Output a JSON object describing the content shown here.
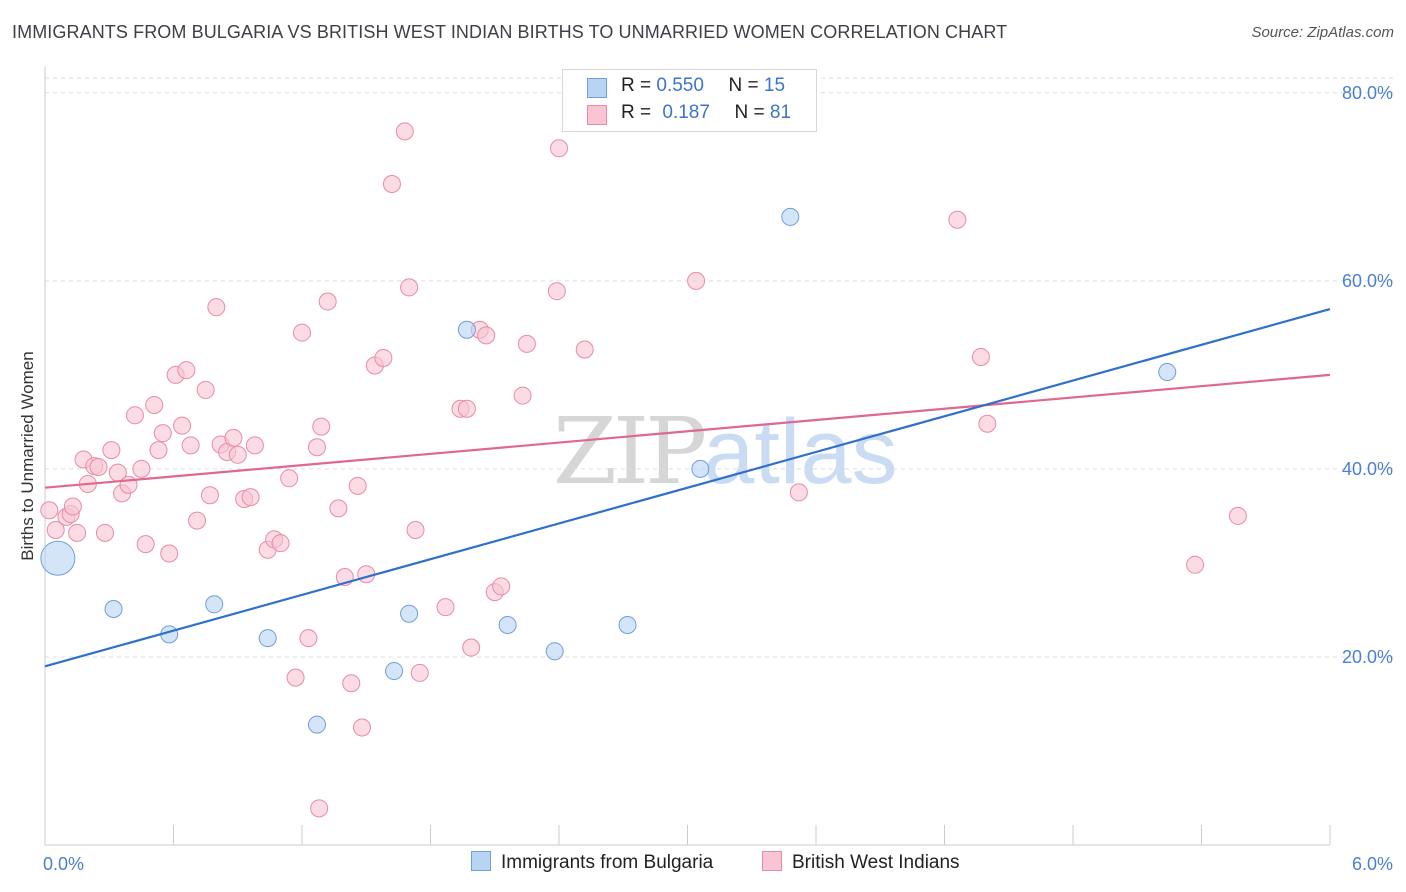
{
  "title": "IMMIGRANTS FROM BULGARIA VS BRITISH WEST INDIAN BIRTHS TO UNMARRIED WOMEN CORRELATION CHART",
  "source": "Source: ZipAtlas.com",
  "watermark": {
    "zip": "ZIP",
    "atlas": "atlas"
  },
  "colors": {
    "bulgaria_fill": "#b9d3f3",
    "bulgaria_stroke": "#6d9fdb",
    "bulgaria_line": "#2f70cc",
    "bwi_fill": "#f9c4d4",
    "bwi_stroke": "#e98aa8",
    "bwi_line": "#e0678f",
    "grid": "#dddddd",
    "tick_label": "#4a7fd1"
  },
  "legend": {
    "rows": [
      {
        "r_label": "R =",
        "r_value": "0.550",
        "n_label": "N =",
        "n_value": "15"
      },
      {
        "r_label": "R =",
        "r_value": "0.187",
        "n_label": "N =",
        "n_value": "81"
      }
    ]
  },
  "chart_data": {
    "type": "scatter",
    "title": "IMMIGRANTS FROM BULGARIA VS BRITISH WEST INDIAN BIRTHS TO UNMARRIED WOMEN CORRELATION CHART",
    "xlabel": "",
    "ylabel": "Births to Unmarried Women",
    "xlim": [
      0,
      6
    ],
    "ylim": [
      0,
      82
    ],
    "x_tick_labels": [
      {
        "value": 0,
        "label": "0.0%"
      },
      {
        "value": 6,
        "label": "6.0%"
      }
    ],
    "y_tick_labels": [
      {
        "value": 20,
        "label": "20.0%"
      },
      {
        "value": 40,
        "label": "40.0%"
      },
      {
        "value": 60,
        "label": "60.0%"
      },
      {
        "value": 80,
        "label": "80.0%"
      }
    ],
    "grid": "horizontal dashed",
    "legend_placement": "top-center",
    "series": [
      {
        "name": "Immigrants from Bulgaria",
        "r": 0.55,
        "n": 15,
        "trend": [
          [
            0,
            19.0
          ],
          [
            6,
            57.0
          ]
        ],
        "points": [
          [
            0.06,
            30.5,
            "large"
          ],
          [
            0.32,
            25.1
          ],
          [
            0.58,
            22.4
          ],
          [
            0.79,
            25.6
          ],
          [
            1.04,
            22.0
          ],
          [
            1.27,
            12.8
          ],
          [
            1.63,
            18.5
          ],
          [
            1.7,
            24.6
          ],
          [
            1.97,
            54.8
          ],
          [
            2.16,
            23.4
          ],
          [
            2.38,
            20.6
          ],
          [
            2.72,
            23.4
          ],
          [
            3.06,
            40.0
          ],
          [
            3.48,
            66.8
          ],
          [
            5.24,
            50.3
          ]
        ]
      },
      {
        "name": "British West Indians",
        "r": 0.187,
        "n": 81,
        "trend": [
          [
            0,
            38.0
          ],
          [
            6,
            50.0
          ]
        ],
        "points": [
          [
            0.02,
            35.6
          ],
          [
            0.05,
            33.5
          ],
          [
            0.1,
            34.9
          ],
          [
            0.12,
            35.2
          ],
          [
            0.13,
            36.0
          ],
          [
            0.15,
            33.2
          ],
          [
            0.18,
            41.0
          ],
          [
            0.2,
            38.4
          ],
          [
            0.23,
            40.3
          ],
          [
            0.25,
            40.2
          ],
          [
            0.28,
            33.2
          ],
          [
            0.31,
            42.0
          ],
          [
            0.34,
            39.6
          ],
          [
            0.36,
            37.4
          ],
          [
            0.39,
            38.3
          ],
          [
            0.42,
            45.7
          ],
          [
            0.45,
            40.0
          ],
          [
            0.47,
            32.0
          ],
          [
            0.51,
            46.8
          ],
          [
            0.53,
            42.0
          ],
          [
            0.55,
            43.8
          ],
          [
            0.58,
            31.0
          ],
          [
            0.61,
            50.0
          ],
          [
            0.64,
            44.6
          ],
          [
            0.66,
            50.5
          ],
          [
            0.68,
            42.5
          ],
          [
            0.71,
            34.5
          ],
          [
            0.75,
            48.4
          ],
          [
            0.77,
            37.2
          ],
          [
            0.8,
            57.2
          ],
          [
            0.82,
            42.6
          ],
          [
            0.85,
            41.8
          ],
          [
            0.88,
            43.3
          ],
          [
            0.9,
            41.5
          ],
          [
            0.93,
            36.8
          ],
          [
            0.96,
            37.0
          ],
          [
            0.98,
            42.5
          ],
          [
            1.04,
            31.4
          ],
          [
            1.07,
            32.5
          ],
          [
            1.1,
            32.1
          ],
          [
            1.14,
            39.0
          ],
          [
            1.17,
            17.8
          ],
          [
            1.2,
            54.5
          ],
          [
            1.23,
            22.0
          ],
          [
            1.27,
            42.3
          ],
          [
            1.29,
            44.5
          ],
          [
            1.32,
            57.8
          ],
          [
            1.37,
            35.8
          ],
          [
            1.4,
            28.5
          ],
          [
            1.43,
            17.2
          ],
          [
            1.46,
            38.2
          ],
          [
            1.48,
            12.5
          ],
          [
            1.5,
            28.8
          ],
          [
            1.54,
            51.0
          ],
          [
            1.58,
            51.8
          ],
          [
            1.62,
            70.3
          ],
          [
            1.68,
            75.9
          ],
          [
            1.7,
            59.3
          ],
          [
            1.73,
            33.5
          ],
          [
            1.75,
            18.3
          ],
          [
            1.87,
            25.3
          ],
          [
            1.94,
            46.4
          ],
          [
            1.97,
            46.4
          ],
          [
            1.99,
            21.0
          ],
          [
            2.03,
            54.8
          ],
          [
            2.06,
            54.2
          ],
          [
            2.1,
            26.9
          ],
          [
            2.13,
            27.5
          ],
          [
            2.23,
            47.8
          ],
          [
            2.25,
            53.3
          ],
          [
            2.39,
            58.9
          ],
          [
            2.4,
            74.1
          ],
          [
            2.52,
            52.7
          ],
          [
            3.04,
            60.0
          ],
          [
            3.52,
            37.5
          ],
          [
            4.26,
            66.5
          ],
          [
            4.37,
            51.9
          ],
          [
            4.4,
            44.8
          ],
          [
            5.37,
            29.8
          ],
          [
            5.57,
            35.0
          ],
          [
            1.28,
            3.9
          ]
        ]
      }
    ]
  }
}
